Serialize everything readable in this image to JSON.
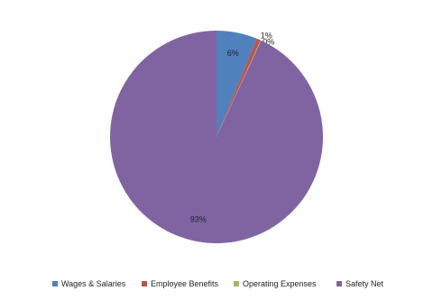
{
  "chart_data": {
    "type": "pie",
    "categories": [
      "Wages & Salaries",
      "Employee Benefits",
      "Operating Expenses",
      "Safety Net"
    ],
    "values": [
      6.2,
      0.6,
      0.1,
      93.1
    ],
    "value_labels": [
      "6%",
      "1%",
      "0%",
      "93%"
    ],
    "colors": [
      "#4f81bd",
      "#c0504d",
      "#9bbb59",
      "#8064a2"
    ],
    "legend": "bottom"
  }
}
